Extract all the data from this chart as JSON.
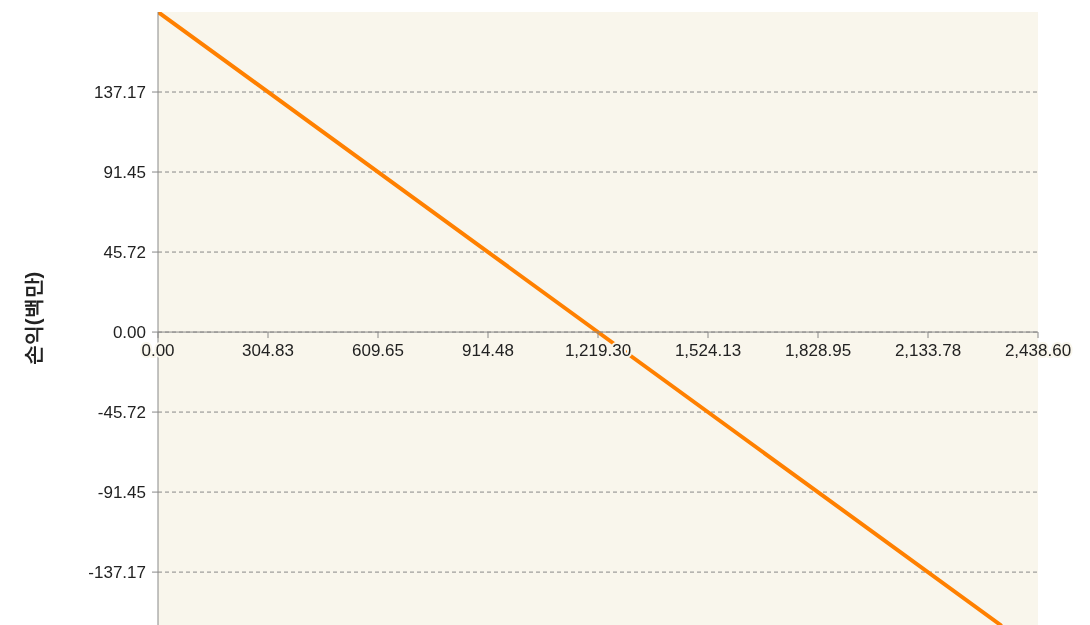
{
  "chart_data": {
    "type": "line",
    "ylabel": "손익(백만)",
    "series": [
      {
        "color": "#ff8000",
        "x": [
          0,
          2335
        ],
        "values": [
          182.9,
          -167.4
        ]
      }
    ],
    "xlim": [
      0,
      2438.6
    ],
    "ylim": [
      -167.4,
      182.9
    ],
    "xticks": [
      {
        "value": 0,
        "label": "0.00"
      },
      {
        "value": 304.83,
        "label": "304.83"
      },
      {
        "value": 609.65,
        "label": "609.65"
      },
      {
        "value": 914.48,
        "label": "914.48"
      },
      {
        "value": 1219.3,
        "label": "1,219.30"
      },
      {
        "value": 1524.13,
        "label": "1,524.13"
      },
      {
        "value": 1828.95,
        "label": "1,828.95"
      },
      {
        "value": 2133.78,
        "label": "2,133.78"
      },
      {
        "value": 2438.6,
        "label": "2,438.60"
      }
    ],
    "yticks": [
      {
        "value": -137.17,
        "label": "-137.17"
      },
      {
        "value": -91.45,
        "label": "-91.45"
      },
      {
        "value": -45.72,
        "label": "-45.72"
      },
      {
        "value": 0,
        "label": "0.00"
      },
      {
        "value": 45.72,
        "label": "45.72"
      },
      {
        "value": 91.45,
        "label": "91.45"
      },
      {
        "value": 137.17,
        "label": "137.17"
      }
    ],
    "grid": "y",
    "line_style": "solid",
    "marker": "none"
  }
}
